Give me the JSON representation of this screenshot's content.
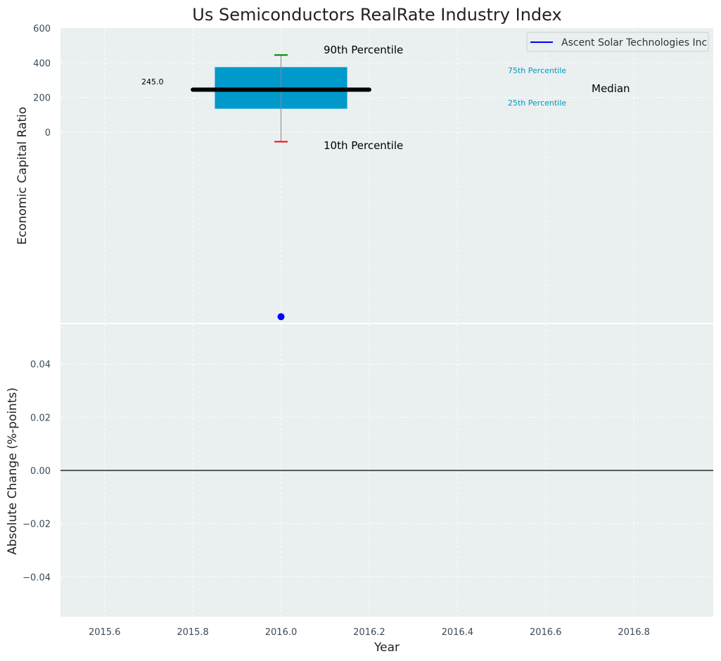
{
  "chart_data": [
    {
      "type": "box",
      "title": "Us Semiconductors RealRate Industry Index",
      "ylabel": "Economic Capital Ratio",
      "ylim": [
        -1100,
        600
      ],
      "y_ticks": [
        0,
        200,
        400,
        600
      ],
      "grid": true,
      "x_at": 2016.0,
      "box": {
        "q1": 135,
        "q3": 375,
        "median": 245,
        "p10": -55,
        "p90": 445
      },
      "box_color": "#0099cc",
      "median_color": "#000000",
      "p90_color": "#008000",
      "p10_color": "#ff0000",
      "company_point": {
        "x": 2016.0,
        "y": -1065,
        "color": "#0000ff"
      },
      "median_label": "245.0",
      "annotations": {
        "p90": "90th Percentile",
        "p10": "10th Percentile",
        "p75": "75th Percentile",
        "p25": "25th Percentile",
        "median": "Median"
      },
      "annotation_color": "#0099bb",
      "legend": {
        "position": "top-right",
        "entries": [
          {
            "label": "Ascent Solar Technologies Inc",
            "color": "#0000ff"
          }
        ]
      }
    },
    {
      "type": "line",
      "xlabel": "Year",
      "ylabel": "Absolute Change (%-points)",
      "xlim": [
        2015.5,
        2016.98
      ],
      "ylim": [
        -0.055,
        0.055
      ],
      "x_ticks": [
        2015.6,
        2015.8,
        2016.0,
        2016.2,
        2016.4,
        2016.6,
        2016.8
      ],
      "x_tick_labels": [
        "2015.6",
        "2015.8",
        "2016.0",
        "2016.2",
        "2016.4",
        "2016.6",
        "2016.8"
      ],
      "y_ticks": [
        -0.04,
        -0.02,
        0.0,
        0.02,
        0.04
      ],
      "y_tick_labels": [
        "−0.04",
        "−0.02",
        "0.00",
        "0.02",
        "0.04"
      ],
      "zero_line": 0,
      "grid": true
    }
  ]
}
